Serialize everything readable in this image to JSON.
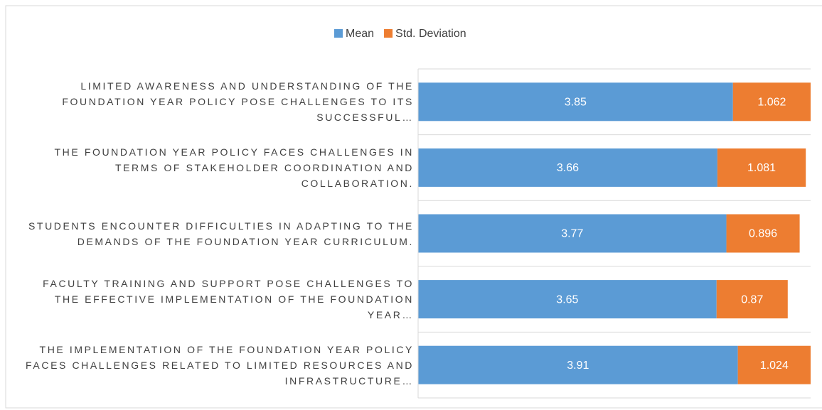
{
  "chart_data": {
    "type": "stacked-bar-horizontal",
    "categories": [
      "LIMITED AWARENESS AND UNDERSTANDING OF THE FOUNDATION YEAR POLICY POSE CHALLENGES TO ITS SUCCESSFUL…",
      "THE FOUNDATION YEAR POLICY FACES CHALLENGES IN TERMS OF STAKEHOLDER COORDINATION AND COLLABORATION.",
      "STUDENTS ENCOUNTER DIFFICULTIES IN ADAPTING TO THE DEMANDS OF THE FOUNDATION YEAR CURRICULUM.",
      "FACULTY TRAINING AND SUPPORT POSE CHALLENGES TO THE EFFECTIVE IMPLEMENTATION OF THE FOUNDATION YEAR…",
      "THE IMPLEMENTATION OF THE FOUNDATION YEAR POLICY FACES CHALLENGES RELATED TO LIMITED RESOURCES AND INFRASTRUCTURE…"
    ],
    "series": [
      {
        "name": "Mean",
        "color": "#5b9bd5",
        "values": [
          3.85,
          3.66,
          3.77,
          3.65,
          3.91
        ]
      },
      {
        "name": "Std. Deviation",
        "color": "#ed7d31",
        "values": [
          1.062,
          1.081,
          0.896,
          0.87,
          1.024
        ]
      }
    ],
    "xlim": [
      0,
      4.8
    ],
    "grid": true,
    "legend": "top"
  }
}
